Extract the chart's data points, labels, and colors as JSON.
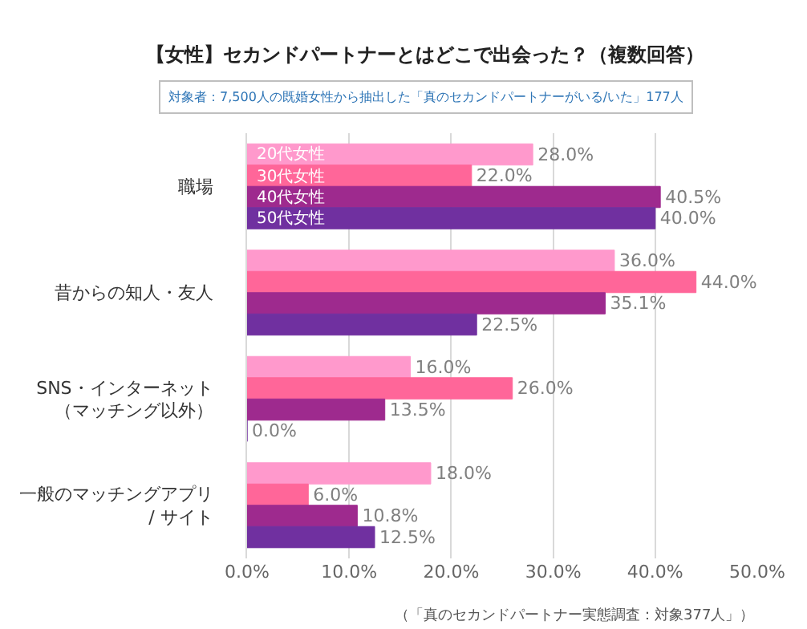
{
  "chart_data": {
    "type": "bar",
    "orientation": "horizontal",
    "title": "【女性】セカンドパートナーとはどこで出会った？（複数回答）",
    "subtitle": "対象者：7,500人の既婚女性から抽出した「真のセカンドパートナーがいる/いた」177人",
    "categories": [
      "職場",
      "昔からの知人・友人",
      "SNS・インターネット（マッチング以外）",
      "一般のマッチングアプリ / サイト"
    ],
    "series": [
      {
        "name": "20代女性",
        "color": "#ff99cc",
        "values": [
          28.0,
          36.0,
          16.0,
          18.0
        ],
        "value_labels": [
          "28.0%",
          "36.0%",
          "16.0%",
          "18.0%"
        ]
      },
      {
        "name": "30代女性",
        "color": "#ff6699",
        "values": [
          22.0,
          44.0,
          26.0,
          6.0
        ],
        "value_labels": [
          "22.0%",
          "44.0%",
          "26.0%",
          "6.0%"
        ]
      },
      {
        "name": "40代女性",
        "color": "#9e2a8e",
        "values": [
          40.5,
          35.1,
          13.5,
          10.8
        ],
        "value_labels": [
          "40.5%",
          "35.1%",
          "13.5%",
          "10.8%"
        ]
      },
      {
        "name": "50代女性",
        "color": "#7030a0",
        "values": [
          40.0,
          22.5,
          0.0,
          12.5
        ],
        "value_labels": [
          "40.0%",
          "22.5%",
          "0.0%",
          "12.5%"
        ]
      }
    ],
    "xlim": [
      0,
      50
    ],
    "xticks": [
      {
        "value": 0,
        "label": "0.0%"
      },
      {
        "value": 10,
        "label": "10.0%"
      },
      {
        "value": 20,
        "label": "20.0%"
      },
      {
        "value": 30,
        "label": "30.0%"
      },
      {
        "value": 40,
        "label": "40.0%"
      },
      {
        "value": 50,
        "label": "50.0%"
      }
    ],
    "grid": "x",
    "legend": false,
    "annotations": [
      "（「真のセカンドパートナー実態調査：対象377人」）"
    ]
  }
}
